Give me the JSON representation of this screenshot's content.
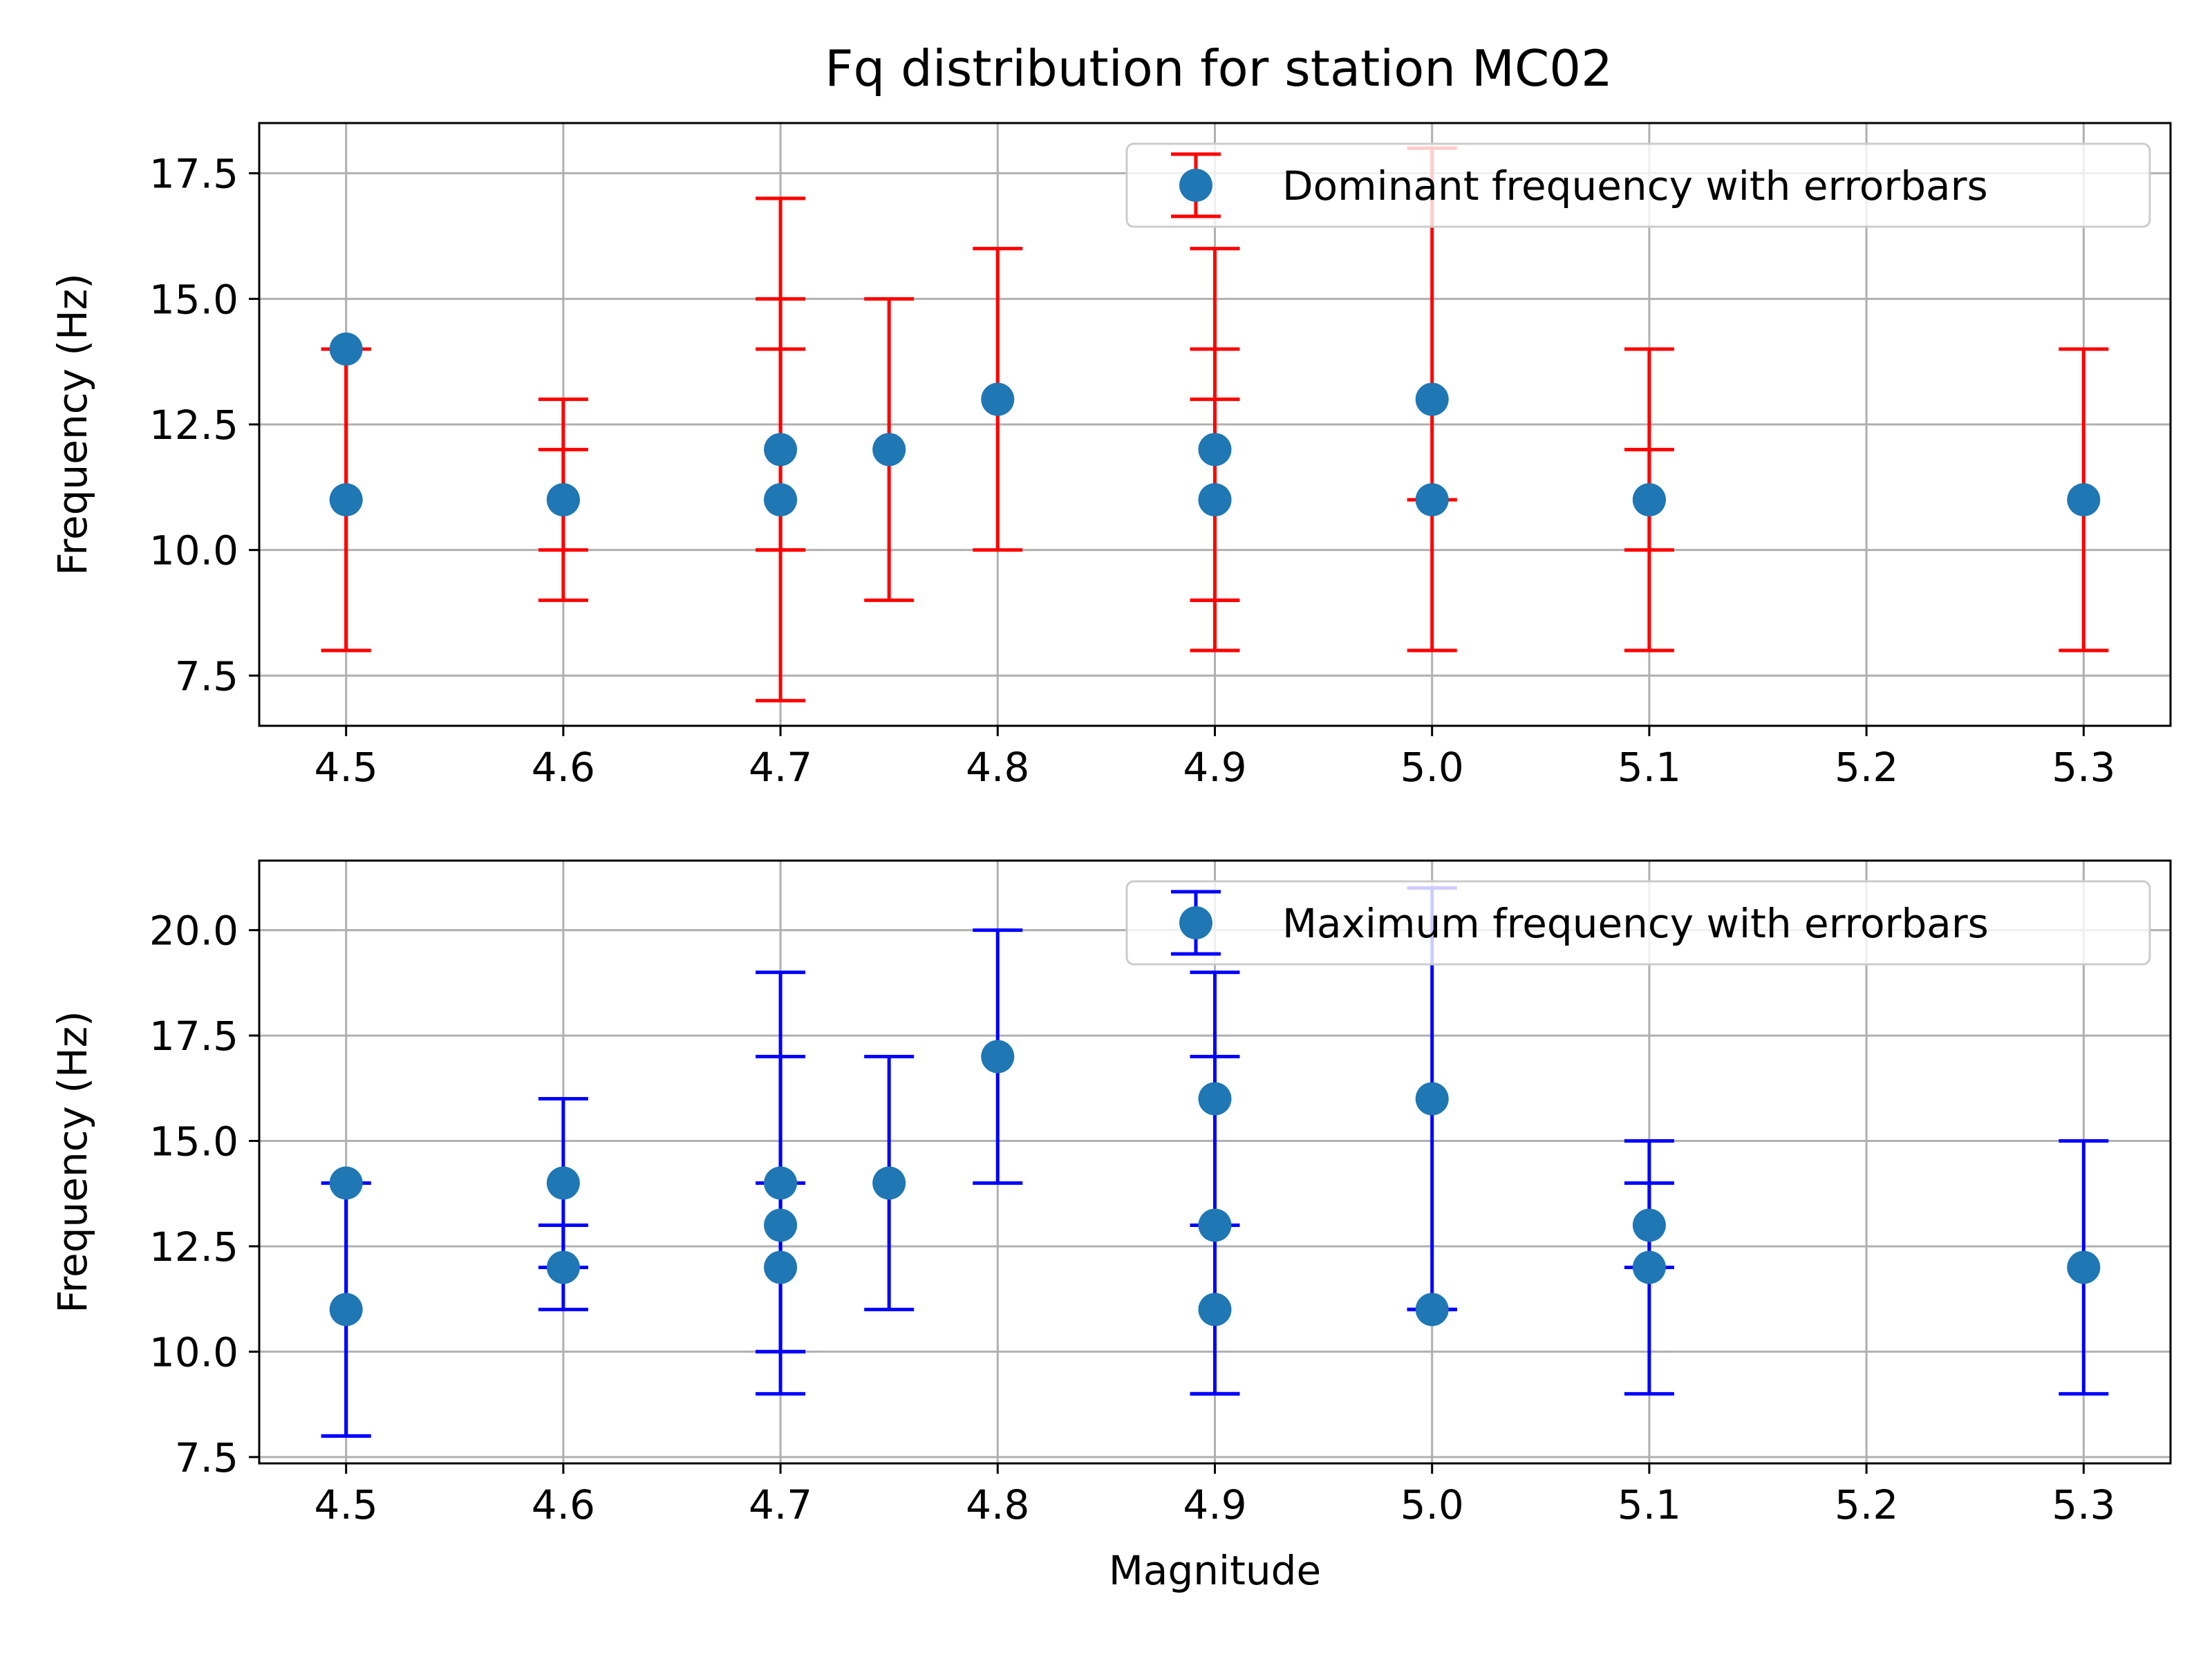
{
  "figure": {
    "title": "Fq distribution for station MC02"
  },
  "chart_data": [
    {
      "type": "scatter",
      "title": "Fq distribution for station MC02",
      "xlabel": "",
      "ylabel": "Frequency (Hz)",
      "xlim": [
        4.46,
        5.34
      ],
      "ylim": [
        6.5,
        18.5
      ],
      "xticks": [
        "4.5",
        "4.6",
        "4.7",
        "4.8",
        "4.9",
        "5.0",
        "5.1",
        "5.2",
        "5.3"
      ],
      "yticks": [
        "7.5",
        "10.0",
        "12.5",
        "15.0",
        "17.5"
      ],
      "grid": true,
      "legend_position": "top-right",
      "error_color": "#ff0000",
      "marker_color": "#1f77b4",
      "series": [
        {
          "name": "Dominant frequency with errorbars",
          "points": [
            {
              "x": 4.5,
              "y": 14,
              "lo": 8,
              "hi": 14
            },
            {
              "x": 4.5,
              "y": 11,
              "lo": 8,
              "hi": 14
            },
            {
              "x": 4.6,
              "y": 11,
              "lo": 9,
              "hi": 13
            },
            {
              "x": 4.6,
              "y": 11,
              "lo": 10,
              "hi": 12
            },
            {
              "x": 4.7,
              "y": 12,
              "lo": 7,
              "hi": 17
            },
            {
              "x": 4.7,
              "y": 11,
              "lo": 10,
              "hi": 15
            },
            {
              "x": 4.7,
              "y": 11,
              "lo": 10,
              "hi": 14
            },
            {
              "x": 4.75,
              "y": 12,
              "lo": 9,
              "hi": 15
            },
            {
              "x": 4.8,
              "y": 13,
              "lo": 10,
              "hi": 16
            },
            {
              "x": 4.9,
              "y": 12,
              "lo": 8,
              "hi": 16
            },
            {
              "x": 4.9,
              "y": 11,
              "lo": 9,
              "hi": 14
            },
            {
              "x": 4.9,
              "y": 11,
              "lo": 9,
              "hi": 13
            },
            {
              "x": 5.0,
              "y": 13,
              "lo": 8,
              "hi": 18
            },
            {
              "x": 5.0,
              "y": 11,
              "lo": 11,
              "hi": 11
            },
            {
              "x": 5.1,
              "y": 11,
              "lo": 8,
              "hi": 14
            },
            {
              "x": 5.1,
              "y": 11,
              "lo": 10,
              "hi": 12
            },
            {
              "x": 5.3,
              "y": 11,
              "lo": 8,
              "hi": 14
            }
          ]
        }
      ]
    },
    {
      "type": "scatter",
      "title": "",
      "xlabel": "Magnitude",
      "ylabel": "Frequency (Hz)",
      "xlim": [
        4.46,
        5.34
      ],
      "ylim": [
        7.35,
        21.65
      ],
      "xticks": [
        "4.5",
        "4.6",
        "4.7",
        "4.8",
        "4.9",
        "5.0",
        "5.1",
        "5.2",
        "5.3"
      ],
      "yticks": [
        "7.5",
        "10.0",
        "12.5",
        "15.0",
        "17.5",
        "20.0"
      ],
      "grid": true,
      "legend_position": "top-right",
      "error_color": "#0000ff",
      "marker_color": "#1f77b4",
      "series": [
        {
          "name": "Maximum frequency with errorbars",
          "points": [
            {
              "x": 4.5,
              "y": 14,
              "lo": 8,
              "hi": 14
            },
            {
              "x": 4.5,
              "y": 11,
              "lo": 8,
              "hi": 14
            },
            {
              "x": 4.6,
              "y": 14,
              "lo": 11,
              "hi": 16
            },
            {
              "x": 4.6,
              "y": 12,
              "lo": 12,
              "hi": 13
            },
            {
              "x": 4.7,
              "y": 14,
              "lo": 9,
              "hi": 19
            },
            {
              "x": 4.7,
              "y": 13,
              "lo": 10,
              "hi": 17
            },
            {
              "x": 4.7,
              "y": 12,
              "lo": 10,
              "hi": 14
            },
            {
              "x": 4.75,
              "y": 14,
              "lo": 11,
              "hi": 17
            },
            {
              "x": 4.8,
              "y": 17,
              "lo": 14,
              "hi": 20
            },
            {
              "x": 4.9,
              "y": 16,
              "lo": 9,
              "hi": 19
            },
            {
              "x": 4.9,
              "y": 13,
              "lo": 9,
              "hi": 17
            },
            {
              "x": 4.9,
              "y": 11,
              "lo": 9,
              "hi": 13
            },
            {
              "x": 5.0,
              "y": 16,
              "lo": 11,
              "hi": 21
            },
            {
              "x": 5.0,
              "y": 11,
              "lo": 11,
              "hi": 11
            },
            {
              "x": 5.1,
              "y": 13,
              "lo": 9,
              "hi": 15
            },
            {
              "x": 5.1,
              "y": 12,
              "lo": 12,
              "hi": 14
            },
            {
              "x": 5.3,
              "y": 12,
              "lo": 9,
              "hi": 15
            }
          ]
        }
      ]
    }
  ]
}
